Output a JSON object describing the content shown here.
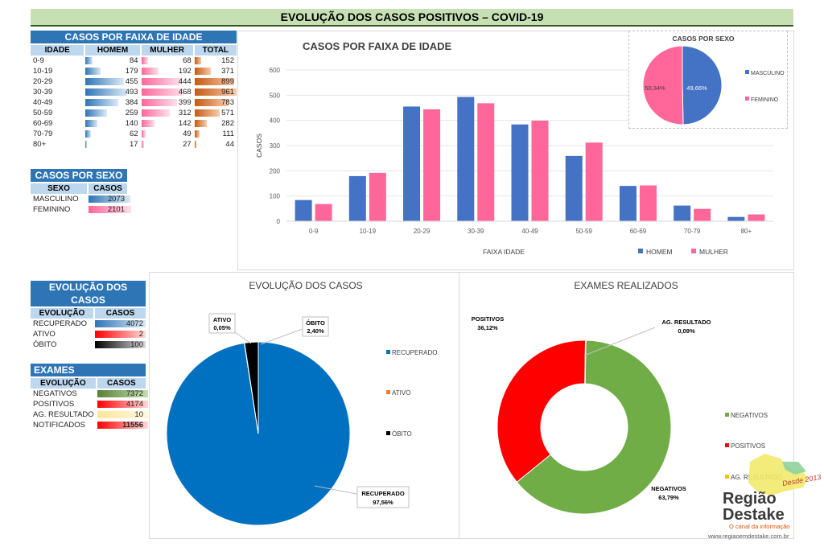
{
  "title": "EVOLUÇÃO DOS  CASOS POSITIVOS – COVID-19",
  "age_table": {
    "title": "CASOS POR FAIXA DE IDADE",
    "headers": [
      "IDADE",
      "HOMEM",
      "MULHER",
      "TOTAL"
    ],
    "rows": [
      {
        "idade": "0-9",
        "homem": "84",
        "mulher": "68",
        "total": "152"
      },
      {
        "idade": "10-19",
        "homem": "179",
        "mulher": "192",
        "total": "371"
      },
      {
        "idade": "20-29",
        "homem": "455",
        "mulher": "444",
        "total": "899"
      },
      {
        "idade": "30-39",
        "homem": "493",
        "mulher": "468",
        "total": "961"
      },
      {
        "idade": "40-49",
        "homem": "384",
        "mulher": "399",
        "total": "783"
      },
      {
        "idade": "50-59",
        "homem": "259",
        "mulher": "312",
        "total": "571"
      },
      {
        "idade": "60-69",
        "homem": "140",
        "mulher": "142",
        "total": "282"
      },
      {
        "idade": "70-79",
        "homem": "62",
        "mulher": "49",
        "total": "111"
      },
      {
        "idade": "80+",
        "homem": "17",
        "mulher": "27",
        "total": "44"
      }
    ]
  },
  "sex_table": {
    "title": "CASOS POR SEXO",
    "headers": [
      "SEXO",
      "CASOS"
    ],
    "rows": [
      {
        "label": "MASCULINO",
        "value": "2073"
      },
      {
        "label": "FEMININO",
        "value": "2101"
      }
    ]
  },
  "evolution_table": {
    "title": "EVOLUÇÃO DOS CASOS",
    "headers": [
      "EVOLUÇÃO",
      "CASOS"
    ],
    "rows": [
      {
        "label": "RECUPERADO",
        "value": "4072"
      },
      {
        "label": "ATIVO",
        "value": "2"
      },
      {
        "label": "ÓBITO",
        "value": "100"
      }
    ]
  },
  "exams_table": {
    "title": "EXAMES",
    "headers": [
      "EVOLUÇÃO",
      "CASOS"
    ],
    "rows": [
      {
        "label": "NEGATIVOS",
        "value": "7372"
      },
      {
        "label": "POSITIVOS",
        "value": "4174"
      },
      {
        "label": "AG. RESULTADO",
        "value": "10"
      },
      {
        "label": "NOTIFICADOS",
        "value": "11556"
      }
    ]
  },
  "colors": {
    "homem": "#4472c4",
    "mulher": "#ff6699",
    "recuperado": "#0070c0",
    "ativo": "#ed7d31",
    "obito": "#000000",
    "negativos": "#70ad47",
    "positivos": "#ff0000",
    "ag_resultado": "#ffc000"
  },
  "logo": {
    "line1": "Região",
    "line2": "Destake",
    "tagline": "O canal da informação",
    "since": "Desde 2013",
    "url": "www.regiaoemdestake.com.br"
  },
  "chart_data": [
    {
      "type": "bar",
      "title": "CASOS POR FAIXA DE IDADE",
      "xlabel": "FAIXA IDADE",
      "ylabel": "CASOS",
      "ylim": [
        0,
        600
      ],
      "yticks": [
        "0",
        "100",
        "200",
        "300",
        "400",
        "500",
        "600"
      ],
      "grid": true,
      "legend": "bottom-right",
      "categories": [
        "0-9",
        "10-19",
        "20-29",
        "30-39",
        "40-49",
        "50-59",
        "60-69",
        "70-79",
        "80+"
      ],
      "series": [
        {
          "name": "HOMEM",
          "values": [
            84,
            179,
            455,
            493,
            384,
            259,
            140,
            62,
            17
          ]
        },
        {
          "name": "MULHER",
          "values": [
            68,
            192,
            444,
            468,
            399,
            312,
            142,
            49,
            27
          ]
        }
      ]
    },
    {
      "type": "pie",
      "title": "CASOS POR SEXO",
      "legend": "right",
      "slices": [
        {
          "name": "MASCULINO",
          "value": 49.66,
          "label": "49,66%"
        },
        {
          "name": "FEMININO",
          "value": 50.34,
          "label": "50,34%"
        }
      ]
    },
    {
      "type": "pie",
      "title": "EVOLUÇÃO DOS CASOS",
      "legend": "right",
      "slices": [
        {
          "name": "RECUPERADO",
          "value": 97.56,
          "label": "97,56%"
        },
        {
          "name": "ATIVO",
          "value": 0.05,
          "label": "0,05%"
        },
        {
          "name": "ÓBITO",
          "value": 2.4,
          "label": "2,40%"
        }
      ]
    },
    {
      "type": "pie",
      "title": "EXAMES REALIZADOS",
      "legend": "right",
      "donut": true,
      "slices": [
        {
          "name": "NEGATIVOS",
          "value": 63.79,
          "label": "63,79%"
        },
        {
          "name": "POSITIVOS",
          "value": 36.12,
          "label": "36,12%"
        },
        {
          "name": "AG. RESULTADO",
          "value": 0.09,
          "label": "0,09%"
        }
      ]
    }
  ]
}
